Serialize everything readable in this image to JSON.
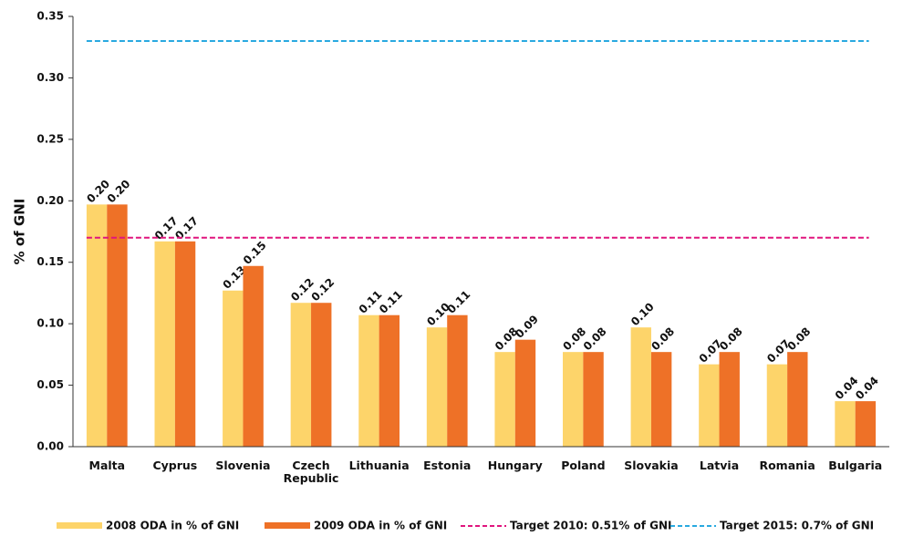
{
  "chart_data": {
    "type": "bar",
    "y_label": "% of GNI",
    "categories": [
      "Malta",
      "Cyprus",
      "Slovenia",
      "Czech Republic",
      "Lithuania",
      "Estonia",
      "Hungary",
      "Poland",
      "Slovakia",
      "Latvia",
      "Romania",
      "Bulgaria"
    ],
    "series": [
      {
        "name": "2008 ODA in % of GNI",
        "color": "#fdd46a",
        "values": [
          0.197,
          0.167,
          0.127,
          0.117,
          0.107,
          0.097,
          0.077,
          0.077,
          0.097,
          0.067,
          0.067,
          0.037
        ],
        "value_labels": [
          "0.20",
          "0.17",
          "0.13",
          "0.12",
          "0.11",
          "0.10",
          "0.08",
          "0.08",
          "0.10",
          "0.07",
          "0.07",
          "0.04"
        ]
      },
      {
        "name": "2009 ODA in % of GNI",
        "color": "#ee7127",
        "values": [
          0.197,
          0.167,
          0.147,
          0.117,
          0.107,
          0.107,
          0.087,
          0.077,
          0.077,
          0.077,
          0.077,
          0.037
        ],
        "value_labels": [
          "0.20",
          "0.17",
          "0.15",
          "0.12",
          "0.11",
          "0.11",
          "0.09",
          "0.08",
          "0.08",
          "0.08",
          "0.08",
          "0.04"
        ]
      }
    ],
    "targets": [
      {
        "name": "Target 2010: 0.51% of GNI",
        "color": "#e0157e",
        "value": 0.17
      },
      {
        "name": "Target 2015: 0.7% of GNI",
        "color": "#29a9e0",
        "value": 0.33
      }
    ],
    "ylim": [
      0,
      0.35
    ],
    "yticks": [
      {
        "value": 0,
        "label": "0.00"
      },
      0.05,
      {
        "value": 0.1,
        "label": "0.10"
      },
      0.15,
      {
        "value": 0.2,
        "label": "0.20"
      },
      0.25,
      {
        "value": 0.3,
        "label": "0.30"
      },
      0.35
    ]
  }
}
